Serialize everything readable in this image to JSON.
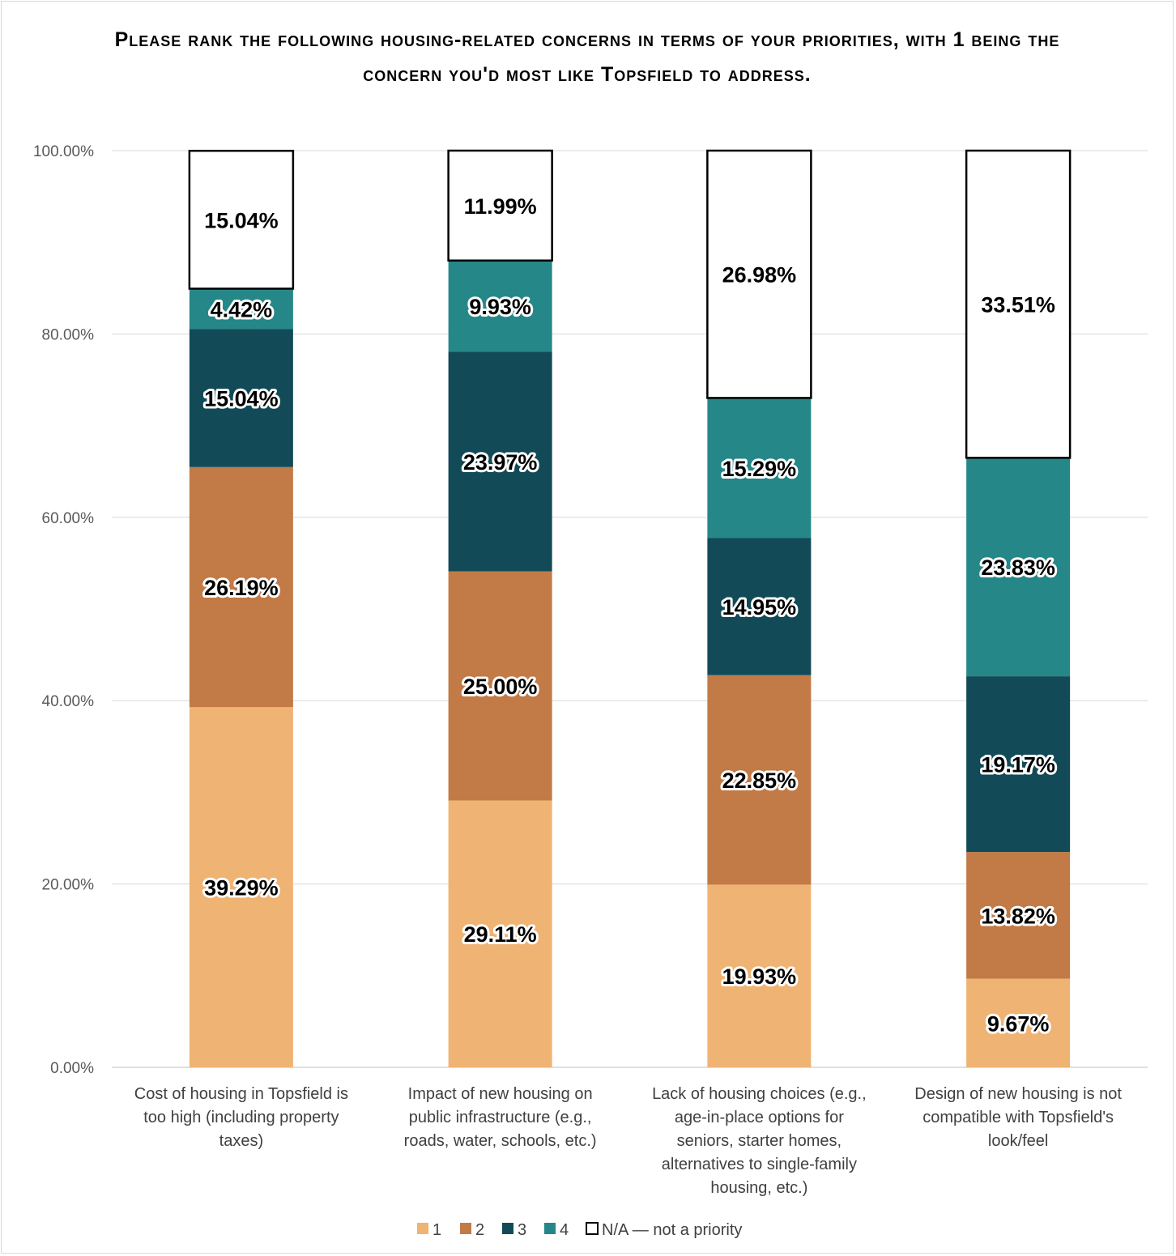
{
  "chart_data": {
    "type": "bar",
    "stacked": true,
    "title": "Please rank the following housing-related concerns in terms of your priorities, with 1 being the concern you'd most like Topsfield to address.",
    "categories": [
      "Cost of housing in Topsfield is too high (including property taxes)",
      "Impact of new housing on public infrastructure (e.g., roads, water, schools, etc.)",
      "Lack of housing choices (e.g., age-in-place options for seniors, starter homes, alternatives to single-family housing, etc.)",
      "Design of new housing is not compatible with Topsfield's look/feel"
    ],
    "series": [
      {
        "name": "1",
        "color": "#efb373",
        "values": [
          39.29,
          29.11,
          19.93,
          9.67
        ],
        "labels": [
          "39.29%",
          "29.11%",
          "19.93%",
          "9.67%"
        ]
      },
      {
        "name": "2",
        "color": "#c27a46",
        "values": [
          26.19,
          25.0,
          22.85,
          13.82
        ],
        "labels": [
          "26.19%",
          "25.00%",
          "22.85%",
          "13.82%"
        ]
      },
      {
        "name": "3",
        "color": "#124a57",
        "values": [
          15.04,
          23.97,
          14.95,
          19.17
        ],
        "labels": [
          "15.04%",
          "23.97%",
          "14.95%",
          "19.17%"
        ]
      },
      {
        "name": "4",
        "color": "#268788",
        "values": [
          4.42,
          9.93,
          15.29,
          23.83
        ],
        "labels": [
          "4.42%",
          "9.93%",
          "15.29%",
          "23.83%"
        ]
      },
      {
        "name": "N/A — not a priority",
        "color": "#ffffff",
        "values": [
          15.04,
          11.99,
          26.98,
          33.51
        ],
        "labels": [
          "15.04%",
          "11.99%",
          "26.98%",
          "33.51%"
        ]
      }
    ],
    "ylim": [
      0,
      100
    ],
    "yticks": [
      "0.00%",
      "20.00%",
      "40.00%",
      "60.00%",
      "80.00%",
      "100.00%"
    ],
    "grid": true,
    "legend_position": "bottom"
  }
}
